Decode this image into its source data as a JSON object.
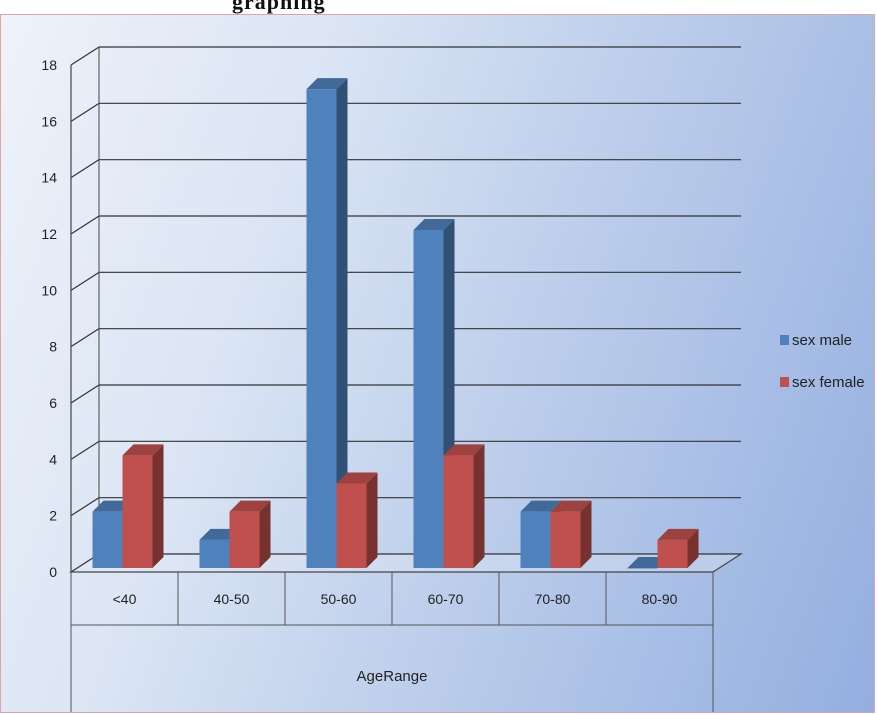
{
  "caption_fragment": "graphing",
  "chart_data": {
    "type": "bar",
    "categories": [
      "<40",
      "40-50",
      "50-60",
      "60-70",
      "70-80",
      "80-90"
    ],
    "series": [
      {
        "name": "sex male",
        "values": [
          2,
          1,
          17,
          12,
          2,
          0
        ]
      },
      {
        "name": "sex female",
        "values": [
          4,
          2,
          3,
          4,
          2,
          1
        ]
      }
    ],
    "xlabel": "AgeRange",
    "ylabel": "",
    "ylim": [
      0,
      18
    ],
    "yticks": [
      0,
      2,
      4,
      6,
      8,
      10,
      12,
      14,
      16,
      18
    ],
    "grid": true,
    "legend_position": "right",
    "colors": {
      "sex male": "#4f81bd",
      "sex female": "#c0504d"
    }
  }
}
